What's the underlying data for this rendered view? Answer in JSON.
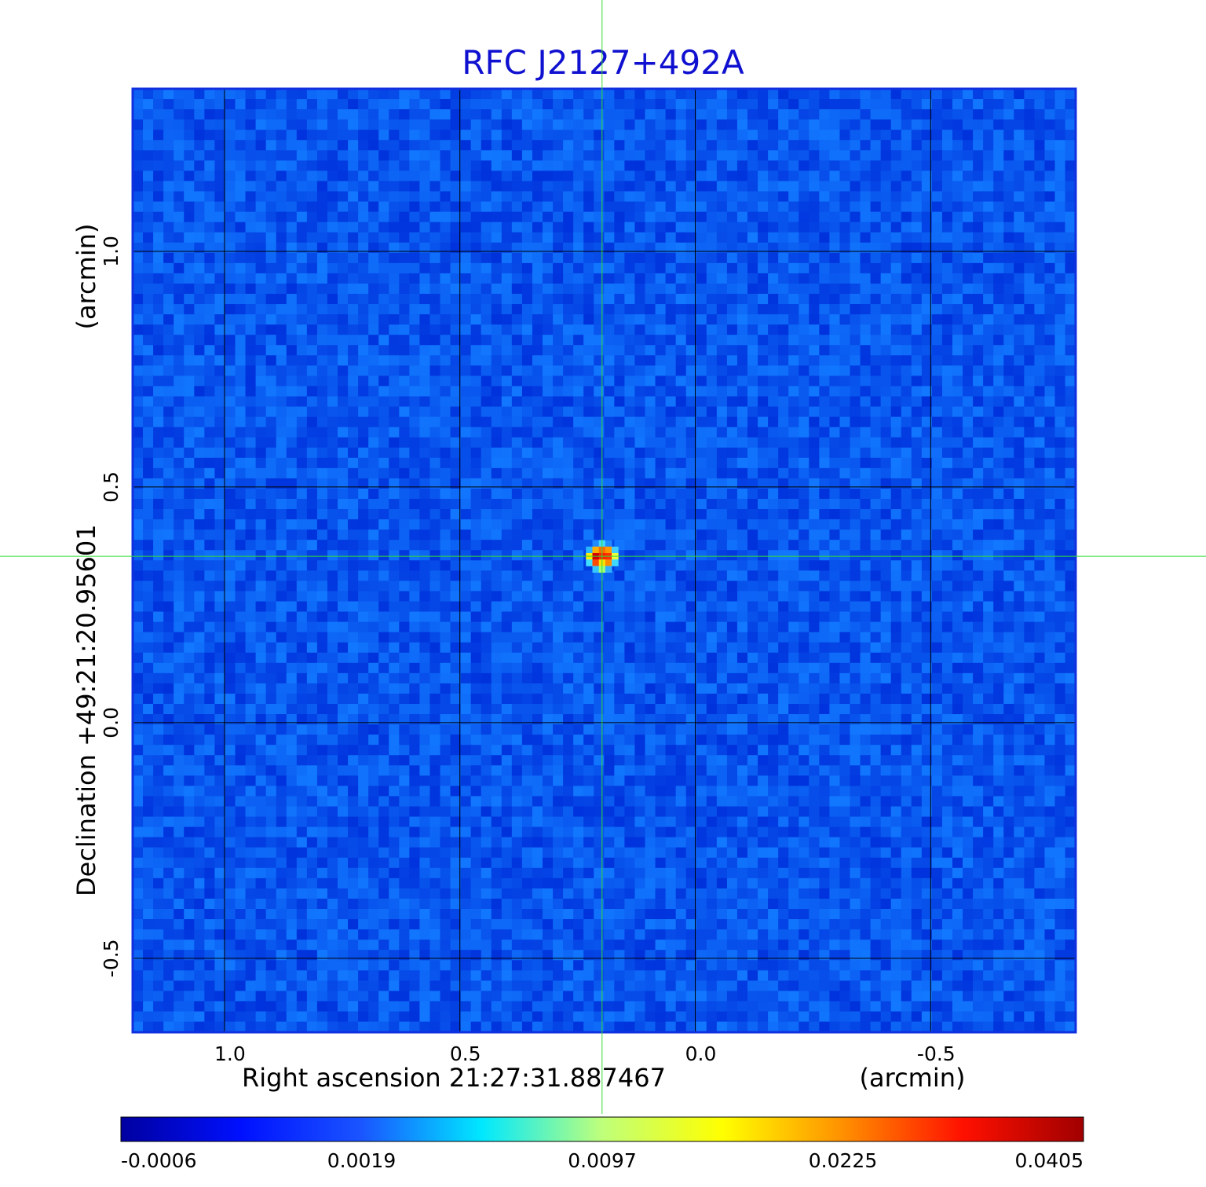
{
  "chart_data": {
    "type": "heatmap",
    "title": "RFC J2127+492A",
    "title_color": "#1010d0",
    "xlabel": "Right ascension  21:27:31.887467",
    "x_unit": "(arcmin)",
    "ylabel": "Declination  +49:21:20.95601",
    "y_unit": "(arcmin)",
    "x_ticks": [
      1.0,
      0.5,
      0.0,
      -0.5
    ],
    "x_tick_labels": [
      "1.0",
      "0.5",
      "0.0",
      "-0.5"
    ],
    "y_ticks": [
      1.0,
      0.5,
      0.0,
      -0.5
    ],
    "y_tick_labels": [
      "1.0",
      "0.5",
      "0.0",
      "-0.5"
    ],
    "xlim": [
      1.195,
      -0.808
    ],
    "ylim": [
      -0.657,
      1.345
    ],
    "x_reversed": true,
    "grid": true,
    "grid_color": "#000000",
    "crosshair": {
      "x": 0.198,
      "y": 0.353,
      "color": "#33dd33"
    },
    "source": {
      "x": 0.198,
      "y": 0.353,
      "peak": 0.0405
    },
    "background_level": -0.0002,
    "colormap": "jet",
    "frame_color": "#1030e0",
    "colorbar": {
      "ticks": [
        -0.0006,
        0.0019,
        0.0097,
        0.0225,
        0.0405
      ],
      "tick_labels": [
        "-0.0006",
        "0.0019",
        "0.0097",
        "0.0225",
        "0.0405"
      ],
      "stops": [
        "#0000a0",
        "#0010ff",
        "#1a55ff",
        "#00e8ff",
        "#bfff7a",
        "#ffff00",
        "#ff9000",
        "#ff1000",
        "#a00000"
      ]
    }
  }
}
